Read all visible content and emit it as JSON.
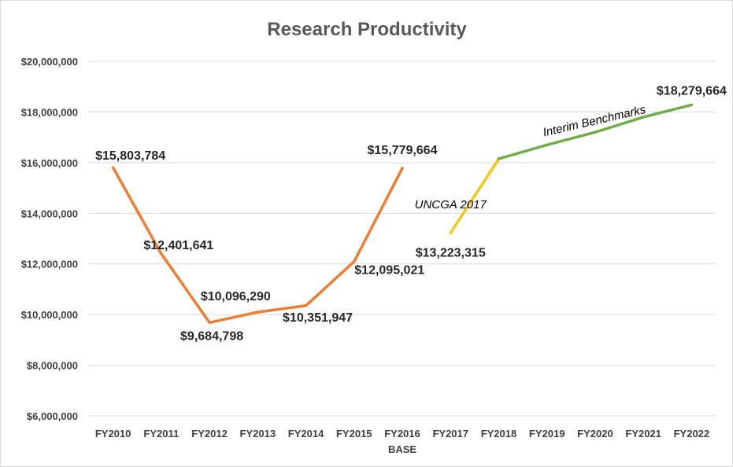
{
  "chart_data": {
    "type": "line",
    "title": "Research Productivity",
    "categories": [
      "FY2010",
      "FY2011",
      "FY2012",
      "FY2013",
      "FY2014",
      "FY2015",
      "FY2016",
      "FY2017",
      "FY2018",
      "FY2019",
      "FY2020",
      "FY2021",
      "FY2022"
    ],
    "category_sublabels": {
      "FY2016": "BASE"
    },
    "ylim": [
      6000000,
      20000000
    ],
    "yticks": [
      6000000,
      8000000,
      10000000,
      12000000,
      14000000,
      16000000,
      18000000,
      20000000
    ],
    "ytick_labels": [
      "$6,000,000",
      "$8,000,000",
      "$10,000,000",
      "$12,000,000",
      "$14,000,000",
      "$16,000,000",
      "$18,000,000",
      "$20,000,000"
    ],
    "grid": true,
    "legend": "none",
    "series": [
      {
        "color": "#ed7d31",
        "values": [
          15803784,
          12401641,
          9684798,
          10096290,
          10351947,
          12095021,
          15779664,
          null,
          null,
          null,
          null,
          null,
          null
        ],
        "data_labels": [
          "$15,803,784",
          "$12,401,641",
          "$9,684,798",
          "$10,096,290",
          "$10,351,947",
          "$12,095,021",
          "$15,779,664",
          null,
          null,
          null,
          null,
          null,
          null
        ]
      },
      {
        "color": "#f5c61c",
        "values": [
          null,
          null,
          null,
          null,
          null,
          null,
          null,
          13223315,
          16150000,
          null,
          null,
          null,
          null
        ],
        "data_labels": [
          null,
          null,
          null,
          null,
          null,
          null,
          null,
          "$13,223,315",
          null,
          null,
          null,
          null,
          null
        ]
      },
      {
        "color": "#70ad47",
        "values": [
          null,
          null,
          null,
          null,
          null,
          null,
          null,
          null,
          16150000,
          16700000,
          17200000,
          17800000,
          18279664
        ],
        "data_labels": [
          null,
          null,
          null,
          null,
          null,
          null,
          null,
          null,
          null,
          null,
          null,
          null,
          "$18,279,664"
        ]
      }
    ],
    "annotations": [
      {
        "text": "UNCGA 2017",
        "category": "FY2017",
        "y": 14200000
      },
      {
        "text": "Interim Benchmarks",
        "category": "FY2020",
        "y": 17500000
      }
    ]
  }
}
